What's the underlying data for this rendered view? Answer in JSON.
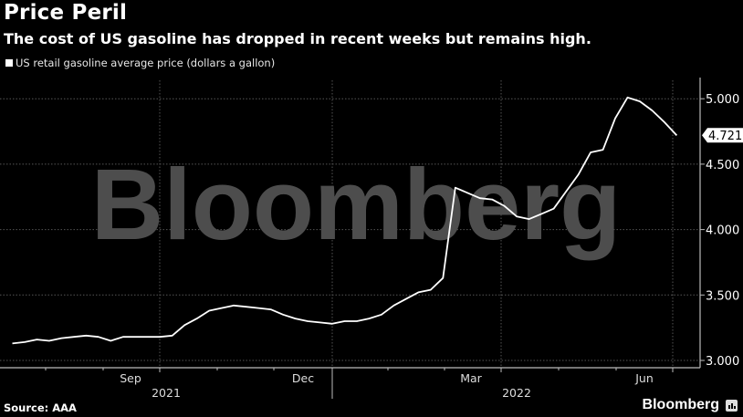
{
  "header": {
    "title": "Price Peril",
    "subtitle": "The cost of US gasoline has dropped in recent weeks but remains high."
  },
  "legend": {
    "label": "US retail gasoline average price (dollars a gallon)"
  },
  "footer": {
    "source": "Source: AAA",
    "brand": "Bloomberg"
  },
  "watermark": "Bloomberg",
  "colors": {
    "background": "#000000",
    "line": "#ffffff",
    "grid": "#555555",
    "watermark": "#4d4d4d"
  },
  "chart_data": {
    "type": "line",
    "title": "Price Peril",
    "subtitle": "The cost of US gasoline has dropped in recent weeks but remains high.",
    "xlabel": "",
    "ylabel": "US retail gasoline average price (dollars a gallon)",
    "ylim": [
      2.95,
      5.1
    ],
    "yticks": [
      "3.000",
      "3.500",
      "4.000",
      "4.500",
      "5.000"
    ],
    "xticks": [
      "Sep",
      "Dec",
      "Mar",
      "Jun"
    ],
    "year_labels": [
      "2021",
      "2022"
    ],
    "grid": true,
    "legend_position": "top-left",
    "last_value_label": "4.721",
    "series": [
      {
        "name": "US retail gasoline average price (dollars a gallon)",
        "x": [
          "2021-07-01",
          "2021-07-08",
          "2021-07-15",
          "2021-07-22",
          "2021-07-29",
          "2021-08-05",
          "2021-08-12",
          "2021-08-19",
          "2021-08-26",
          "2021-09-02",
          "2021-09-09",
          "2021-09-16",
          "2021-09-23",
          "2021-09-30",
          "2021-10-07",
          "2021-10-14",
          "2021-10-21",
          "2021-10-28",
          "2021-11-04",
          "2021-11-11",
          "2021-11-18",
          "2021-11-25",
          "2021-12-02",
          "2021-12-09",
          "2021-12-16",
          "2021-12-23",
          "2021-12-30",
          "2022-01-06",
          "2022-01-13",
          "2022-01-20",
          "2022-01-27",
          "2022-02-03",
          "2022-02-10",
          "2022-02-17",
          "2022-02-24",
          "2022-03-03",
          "2022-03-10",
          "2022-03-17",
          "2022-03-24",
          "2022-03-31",
          "2022-04-07",
          "2022-04-14",
          "2022-04-21",
          "2022-04-28",
          "2022-05-05",
          "2022-05-12",
          "2022-05-19",
          "2022-05-26",
          "2022-06-02",
          "2022-06-09",
          "2022-06-16",
          "2022-06-23",
          "2022-06-30",
          "2022-07-07",
          "2022-07-14"
        ],
        "values": [
          3.13,
          3.14,
          3.16,
          3.15,
          3.17,
          3.18,
          3.19,
          3.18,
          3.15,
          3.18,
          3.18,
          3.18,
          3.18,
          3.19,
          3.27,
          3.32,
          3.38,
          3.4,
          3.42,
          3.41,
          3.4,
          3.39,
          3.35,
          3.32,
          3.3,
          3.29,
          3.28,
          3.3,
          3.3,
          3.32,
          3.35,
          3.42,
          3.47,
          3.52,
          3.54,
          3.63,
          4.32,
          4.28,
          4.24,
          4.23,
          4.18,
          4.1,
          4.08,
          4.12,
          4.16,
          4.29,
          4.42,
          4.59,
          4.61,
          4.85,
          5.01,
          4.98,
          4.91,
          4.82,
          4.72
        ]
      }
    ]
  }
}
